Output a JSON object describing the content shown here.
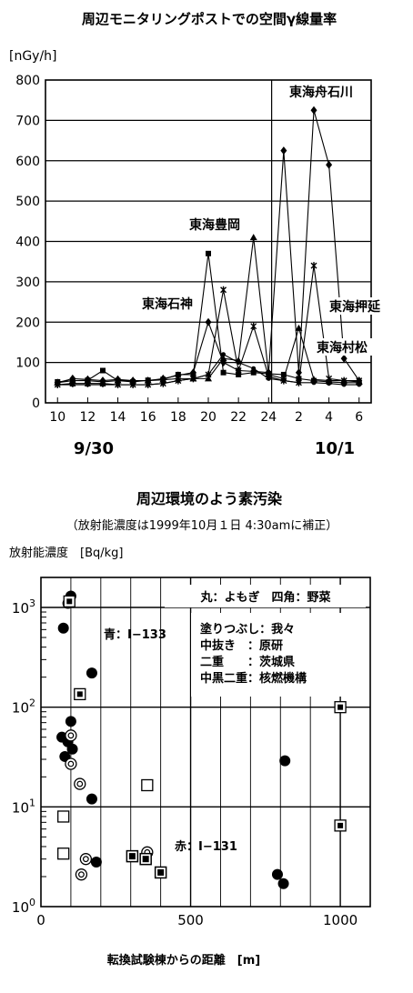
{
  "chart_data": [
    {
      "type": "line",
      "title": "周辺モニタリングポストでの空間γ線量率",
      "ylabel": "[nGy/h]",
      "ylim": [
        0,
        800
      ],
      "yticks": [
        0,
        100,
        200,
        300,
        400,
        500,
        600,
        700,
        800
      ],
      "x_ticks": [
        "10",
        "12",
        "14",
        "16",
        "18",
        "20",
        "22",
        "24",
        "2",
        "4",
        "6"
      ],
      "date_labels": [
        "9/30",
        "10/1"
      ],
      "grid": true,
      "series": [
        {
          "name": "東海舟石川",
          "marker": "diamond",
          "x": [
            10,
            11,
            12,
            13,
            14,
            15,
            16,
            17,
            18,
            19,
            20,
            21,
            22,
            23,
            24,
            25,
            26,
            27,
            28,
            29,
            30
          ],
          "y": [
            50,
            60,
            58,
            55,
            58,
            55,
            55,
            60,
            68,
            75,
            200,
            100,
            80,
            78,
            75,
            625,
            75,
            725,
            590,
            110,
            55
          ]
        },
        {
          "name": "東海豊岡",
          "marker": "square",
          "x": [
            10,
            11,
            12,
            13,
            14,
            15,
            16,
            17,
            18,
            19,
            20,
            21,
            22,
            23,
            24,
            25,
            26,
            27,
            28,
            29,
            30
          ],
          "y": [
            52,
            55,
            56,
            80,
            55,
            52,
            56,
            58,
            70,
            70,
            370,
            75,
            70,
            75,
            72,
            70,
            60,
            55,
            52,
            50,
            50
          ]
        },
        {
          "name": "東海石神",
          "marker": "triangle",
          "x": [
            10,
            11,
            12,
            13,
            14,
            15,
            16,
            17,
            18,
            19,
            20,
            21,
            22,
            23,
            24,
            25,
            26,
            27,
            28,
            29,
            30
          ],
          "y": [
            50,
            55,
            55,
            52,
            55,
            55,
            55,
            57,
            60,
            60,
            60,
            110,
            105,
            410,
            70,
            60,
            185,
            58,
            55,
            55,
            52
          ]
        },
        {
          "name": "東海押延",
          "marker": "x",
          "x": [
            10,
            11,
            12,
            13,
            14,
            15,
            16,
            17,
            18,
            19,
            20,
            21,
            22,
            23,
            24,
            25,
            26,
            27,
            28,
            29,
            30
          ],
          "y": [
            45,
            48,
            48,
            48,
            45,
            45,
            45,
            48,
            55,
            60,
            70,
            280,
            80,
            190,
            65,
            55,
            50,
            340,
            60,
            55,
            55
          ]
        },
        {
          "name": "東海村松",
          "marker": "star",
          "x": [
            10,
            11,
            12,
            13,
            14,
            15,
            16,
            17,
            18,
            19,
            20,
            21,
            22,
            23,
            24,
            25,
            26,
            27,
            28,
            29,
            30
          ],
          "y": [
            45,
            45,
            45,
            45,
            45,
            45,
            45,
            48,
            55,
            60,
            70,
            120,
            100,
            85,
            60,
            55,
            50,
            50,
            48,
            45,
            45
          ]
        }
      ]
    },
    {
      "type": "scatter",
      "title": "周辺環境のよう素汚染",
      "subtitle": "（放射能濃度は1999年10月１日 4:30amに補正）",
      "ylabel": "放射能濃度　[Bq/kg]",
      "xlabel": "転換試験棟からの距離　[m]",
      "xlim": [
        0,
        1100
      ],
      "xticks": [
        0,
        500,
        1000
      ],
      "ylim": [
        1,
        2000
      ],
      "yscale": "log",
      "yticks": [
        "10^0",
        "10^1",
        "10^2",
        "10^3"
      ],
      "grid": true,
      "legend": [
        "丸：よもぎ　四角：野菜",
        "塗りつぶし：我々",
        "中抜き　：原研",
        "二重　　：茨城県",
        "中黒二重：核燃機構"
      ],
      "annotations": [
        "青：I−133",
        "赤：I−131"
      ],
      "points": [
        {
          "x": 90,
          "y": 1100,
          "m": "cf"
        },
        {
          "x": 100,
          "y": 1300,
          "m": "cf"
        },
        {
          "x": 75,
          "y": 620,
          "m": "cf"
        },
        {
          "x": 170,
          "y": 220,
          "m": "cf"
        },
        {
          "x": 100,
          "y": 72,
          "m": "cf"
        },
        {
          "x": 70,
          "y": 50,
          "m": "cf"
        },
        {
          "x": 90,
          "y": 45,
          "m": "cf"
        },
        {
          "x": 105,
          "y": 38,
          "m": "cf"
        },
        {
          "x": 80,
          "y": 32,
          "m": "cf"
        },
        {
          "x": 170,
          "y": 12,
          "m": "cf"
        },
        {
          "x": 185,
          "y": 2.8,
          "m": "cf"
        },
        {
          "x": 790,
          "y": 2.1,
          "m": "cf"
        },
        {
          "x": 810,
          "y": 1.7,
          "m": "cf"
        },
        {
          "x": 815,
          "y": 29,
          "m": "cf"
        },
        {
          "x": 100,
          "y": 52,
          "m": "cd"
        },
        {
          "x": 100,
          "y": 27,
          "m": "cd"
        },
        {
          "x": 130,
          "y": 17,
          "m": "cd"
        },
        {
          "x": 150,
          "y": 3.0,
          "m": "cd"
        },
        {
          "x": 135,
          "y": 2.1,
          "m": "cd"
        },
        {
          "x": 355,
          "y": 3.5,
          "m": "cd"
        },
        {
          "x": 95,
          "y": 1150,
          "m": "sd"
        },
        {
          "x": 130,
          "y": 135,
          "m": "sd"
        },
        {
          "x": 1000,
          "y": 100,
          "m": "sd"
        },
        {
          "x": 1000,
          "y": 6.5,
          "m": "sd"
        },
        {
          "x": 75,
          "y": 8.0,
          "m": "so"
        },
        {
          "x": 75,
          "y": 3.4,
          "m": "so"
        },
        {
          "x": 355,
          "y": 16.5,
          "m": "so"
        },
        {
          "x": 305,
          "y": 3.2,
          "m": "sf"
        },
        {
          "x": 350,
          "y": 3.0,
          "m": "sf"
        },
        {
          "x": 400,
          "y": 2.2,
          "m": "sf"
        }
      ]
    }
  ]
}
